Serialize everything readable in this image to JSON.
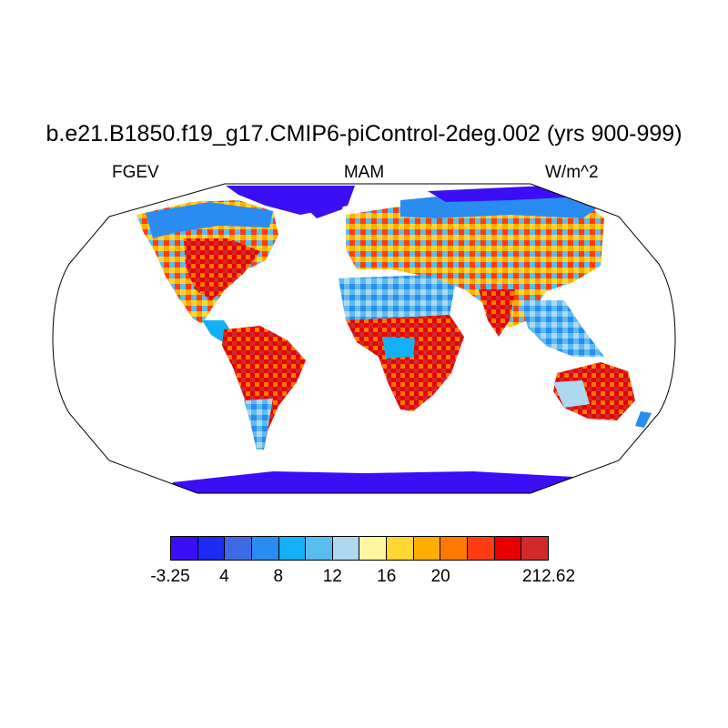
{
  "title": "b.e21.B1850.f19_g17.CMIP6-piControl-2deg.002 (yrs 900-999)",
  "left_label": "FGEV",
  "center_label": "MAM",
  "right_label": "W/m^2",
  "colorbar": {
    "colors": [
      "#3b0ef5",
      "#1c2cf5",
      "#3e6ae6",
      "#2a8cf0",
      "#13b0f5",
      "#5bbcf0",
      "#add8ef",
      "#fff6a0",
      "#ffd633",
      "#ffad00",
      "#ff7800",
      "#ff3c14",
      "#e60000",
      "#d12a2a"
    ],
    "labels": [
      {
        "text": "-3.25",
        "boundary": 0
      },
      {
        "text": "4",
        "boundary": 2
      },
      {
        "text": "8",
        "boundary": 4
      },
      {
        "text": "12",
        "boundary": 6
      },
      {
        "text": "16",
        "boundary": 8
      },
      {
        "text": "20",
        "boundary": 10
      },
      {
        "text": "212.62",
        "boundary": 14
      }
    ]
  }
}
